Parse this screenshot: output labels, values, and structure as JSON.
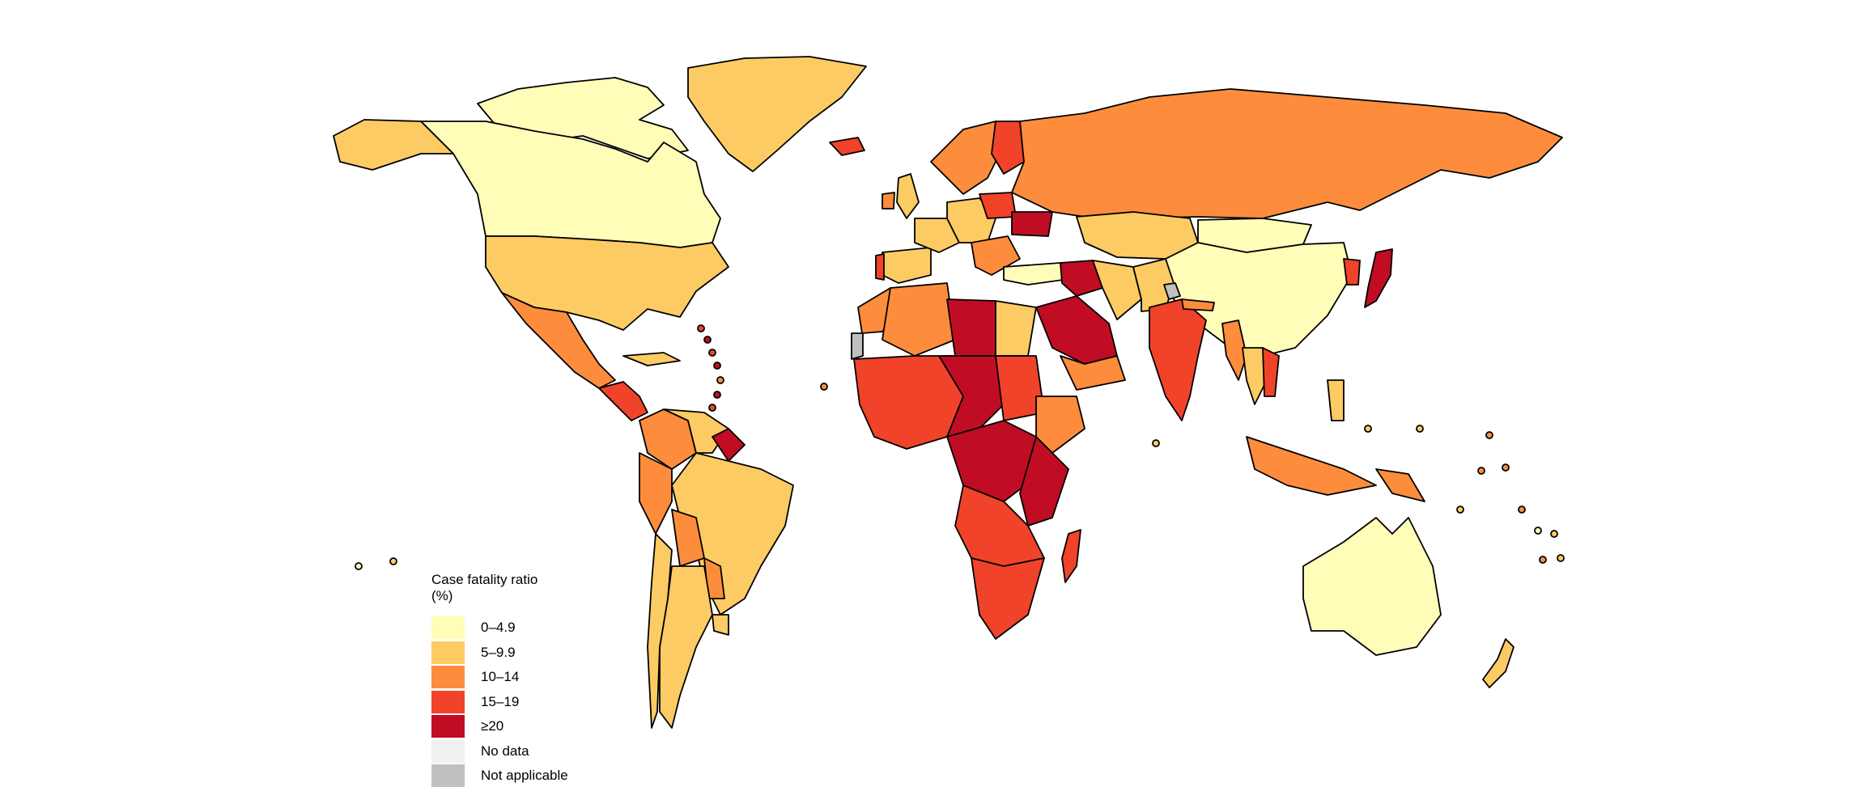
{
  "legend": {
    "title_line1": "Case fatality ratio",
    "title_line2": "(%)",
    "items": [
      {
        "label": "0–4.9",
        "color": "#fffdb8"
      },
      {
        "label": "5–9.9",
        "color": "#fdcb63"
      },
      {
        "label": "10–14",
        "color": "#fd8d3c"
      },
      {
        "label": "15–19",
        "color": "#f0432a"
      },
      {
        "label": "≥20",
        "color": "#c00d24"
      },
      {
        "label": "No data",
        "color": "#f0f0f0"
      },
      {
        "label": "Not applicable",
        "color": "#c0c0c0"
      }
    ]
  },
  "regions": [
    {
      "name": "canada",
      "category": "0–4.9"
    },
    {
      "name": "canadian-arctic",
      "category": "0–4.9"
    },
    {
      "name": "alaska",
      "category": "5–9.9"
    },
    {
      "name": "united-states",
      "category": "5–9.9"
    },
    {
      "name": "greenland",
      "category": "5–9.9"
    },
    {
      "name": "mexico",
      "category": "10–14"
    },
    {
      "name": "central-america",
      "category": "15–19"
    },
    {
      "name": "cuba",
      "category": "5–9.9"
    },
    {
      "name": "colombia",
      "category": "10–14"
    },
    {
      "name": "venezuela",
      "category": "5–9.9"
    },
    {
      "name": "guyana",
      "category": "≥20"
    },
    {
      "name": "brazil",
      "category": "5–9.9"
    },
    {
      "name": "peru",
      "category": "10–14"
    },
    {
      "name": "bolivia",
      "category": "10–14"
    },
    {
      "name": "paraguay",
      "category": "10–14"
    },
    {
      "name": "argentina",
      "category": "5–9.9"
    },
    {
      "name": "chile",
      "category": "5–9.9"
    },
    {
      "name": "uruguay",
      "category": "5–9.9"
    },
    {
      "name": "iceland",
      "category": "15–19"
    },
    {
      "name": "scandinavia",
      "category": "10–14"
    },
    {
      "name": "finland",
      "category": "15–19"
    },
    {
      "name": "united-kingdom",
      "category": "5–9.9"
    },
    {
      "name": "ireland",
      "category": "10–14"
    },
    {
      "name": "iberia",
      "category": "5–9.9"
    },
    {
      "name": "portugal",
      "category": "15–19"
    },
    {
      "name": "france",
      "category": "5–9.9"
    },
    {
      "name": "central-europe",
      "category": "5–9.9"
    },
    {
      "name": "poland",
      "category": "15–19"
    },
    {
      "name": "ukraine",
      "category": "≥20"
    },
    {
      "name": "balkans",
      "category": "10–14"
    },
    {
      "name": "turkey",
      "category": "0–4.9"
    },
    {
      "name": "russia",
      "category": "10–14"
    },
    {
      "name": "kazakhstan",
      "category": "5–9.9"
    },
    {
      "name": "mongolia",
      "category": "0–4.9"
    },
    {
      "name": "china",
      "category": "0–4.9"
    },
    {
      "name": "korea",
      "category": "15–19"
    },
    {
      "name": "japan",
      "category": "≥20"
    },
    {
      "name": "iran",
      "category": "5–9.9"
    },
    {
      "name": "iraq-syria",
      "category": "≥20"
    },
    {
      "name": "afghanistan-pakistan",
      "category": "5–9.9"
    },
    {
      "name": "kashmir",
      "category": "Not applicable"
    },
    {
      "name": "india",
      "category": "15–19"
    },
    {
      "name": "nepal",
      "category": "10–14"
    },
    {
      "name": "myanmar",
      "category": "10–14"
    },
    {
      "name": "thailand",
      "category": "5–9.9"
    },
    {
      "name": "vietnam-laos",
      "category": "15–19"
    },
    {
      "name": "saudi-arabia",
      "category": "≥20"
    },
    {
      "name": "yemen-oman",
      "category": "10–14"
    },
    {
      "name": "egypt",
      "category": "5–9.9"
    },
    {
      "name": "libya",
      "category": "≥20"
    },
    {
      "name": "algeria",
      "category": "10–14"
    },
    {
      "name": "morocco",
      "category": "10–14"
    },
    {
      "name": "western-sahara",
      "category": "Not applicable"
    },
    {
      "name": "west-africa",
      "category": "15–19"
    },
    {
      "name": "sahel",
      "category": "≥20"
    },
    {
      "name": "sudan",
      "category": "15–19"
    },
    {
      "name": "ethiopia",
      "category": "10–14"
    },
    {
      "name": "central-africa",
      "category": "≥20"
    },
    {
      "name": "east-africa",
      "category": "≥20"
    },
    {
      "name": "southern-central-africa",
      "category": "15–19"
    },
    {
      "name": "south-africa",
      "category": "15–19"
    },
    {
      "name": "madagascar",
      "category": "15–19"
    },
    {
      "name": "indonesia",
      "category": "10–14"
    },
    {
      "name": "philippines",
      "category": "5–9.9"
    },
    {
      "name": "papua-new-guinea",
      "category": "10–14"
    },
    {
      "name": "australia",
      "category": "0–4.9"
    },
    {
      "name": "new-zealand",
      "category": "5–9.9"
    }
  ]
}
